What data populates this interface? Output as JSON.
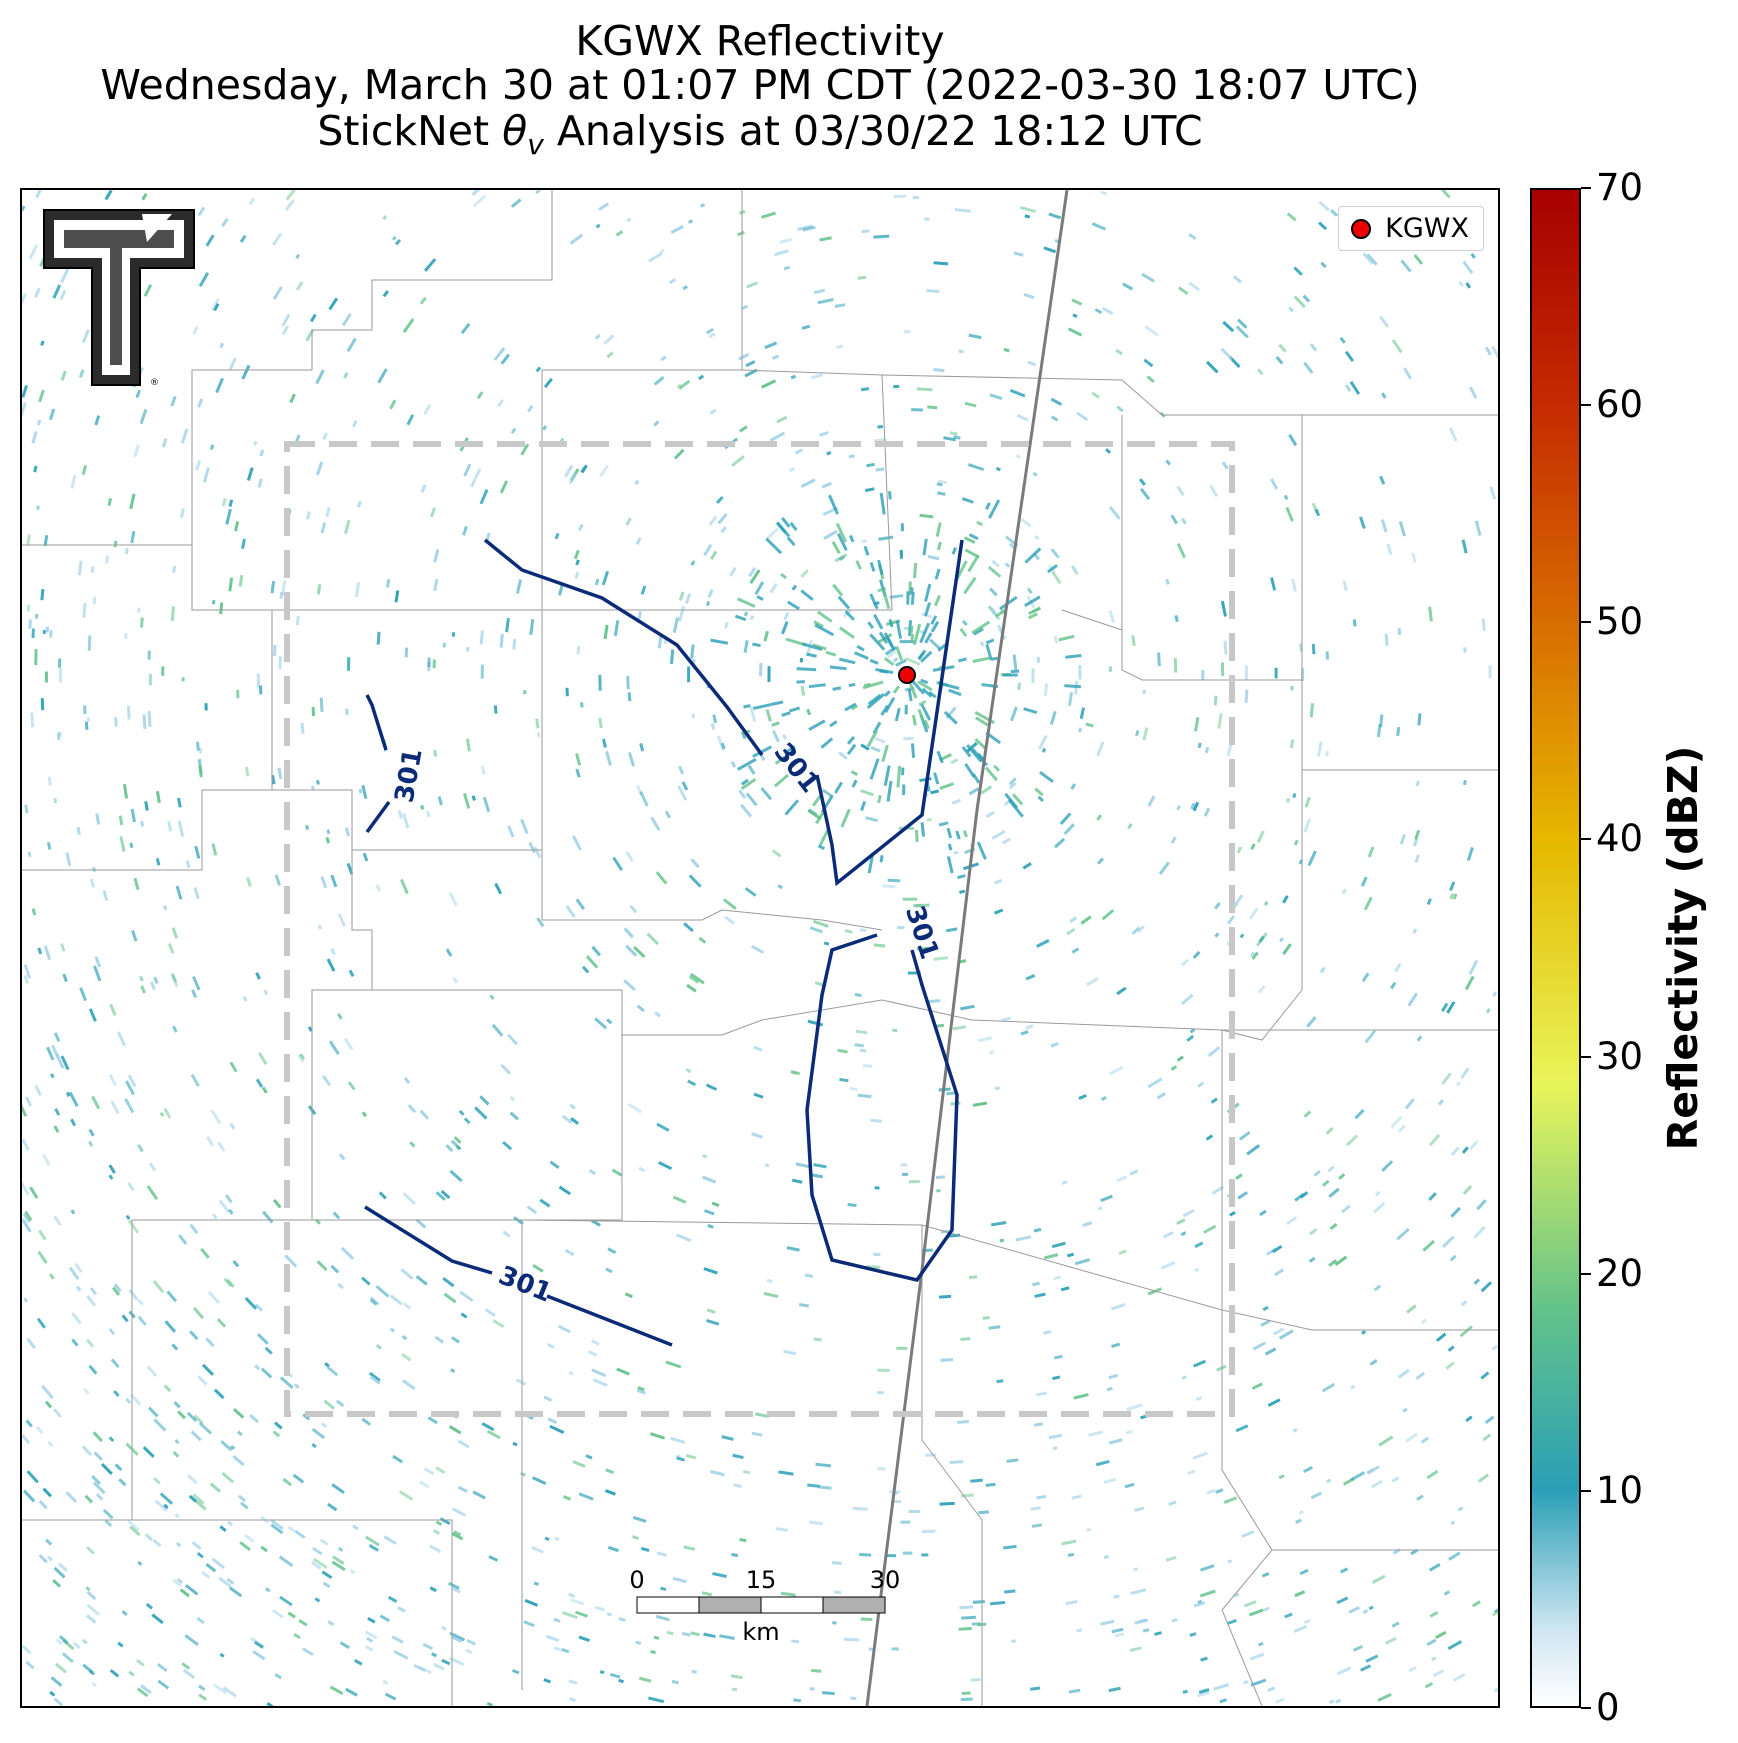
{
  "header": {
    "title": "KGWX Reflectivity",
    "subtitle": "Wednesday, March 30 at 01:07 PM CDT (2022-03-30 18:07 UTC)",
    "analysis_prefix": "StickNet ",
    "analysis_symbol": "θ",
    "analysis_subscript": "v",
    "analysis_suffix": " Analysis at 03/30/22 18:12 UTC"
  },
  "legend": {
    "marker_label": "KGWX",
    "marker_color": "#ee0000"
  },
  "colorbar": {
    "title": "Reflectivity (dBZ)",
    "min": 0,
    "max": 70,
    "ticks": [
      "0",
      "10",
      "20",
      "30",
      "40",
      "50",
      "60",
      "70"
    ]
  },
  "contours": {
    "level_label": "301",
    "color": "#0b2a78"
  },
  "scalebar": {
    "labels": [
      "0",
      "15",
      "30"
    ],
    "unit": "km"
  },
  "logo": {
    "name": "Texas Tech Double T",
    "registered": "®"
  },
  "colors": {
    "echo_light": "#9fd0e6",
    "echo_mid": "#2a9fb6",
    "echo_green": "#62c28a",
    "domain_box": "#c8c8c8",
    "boundary": "#9a9a9a",
    "highway": "#7a7a7a"
  }
}
